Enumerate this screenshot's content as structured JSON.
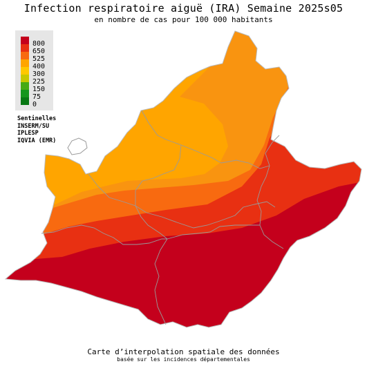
{
  "header": {
    "title": "Infection respiratoire aiguë (IRA) Semaine 2025s05",
    "subtitle": "en nombre de cas pour 100 000 habitants"
  },
  "legend": {
    "items": [
      {
        "label": "800",
        "color": "#c4001c"
      },
      {
        "label": "650",
        "color": "#e83012"
      },
      {
        "label": "525",
        "color": "#f86a10"
      },
      {
        "label": "400",
        "color": "#ffa500"
      },
      {
        "label": "300",
        "color": "#ffc800"
      },
      {
        "label": "225",
        "color": "#c8c800"
      },
      {
        "label": "150",
        "color": "#46aa14"
      },
      {
        "label": "75",
        "color": "#14961e"
      },
      {
        "label": "0",
        "color": "#087814"
      }
    ]
  },
  "sources": [
    "Sentinelles",
    "INSERM/SU",
    "IPLESP",
    "IQVIA (EMR)"
  ],
  "map": {
    "zone_colors": {
      "highest": "#c4001c",
      "high": "#e83012",
      "mid_high": "#f86a10",
      "mid": "#f99410",
      "low": "#ffa500"
    },
    "border_color": "#9a9a9a"
  },
  "footer": {
    "line1": "Carte d’interpolation spatiale des données",
    "line2": "basée sur les incidences départementales"
  }
}
